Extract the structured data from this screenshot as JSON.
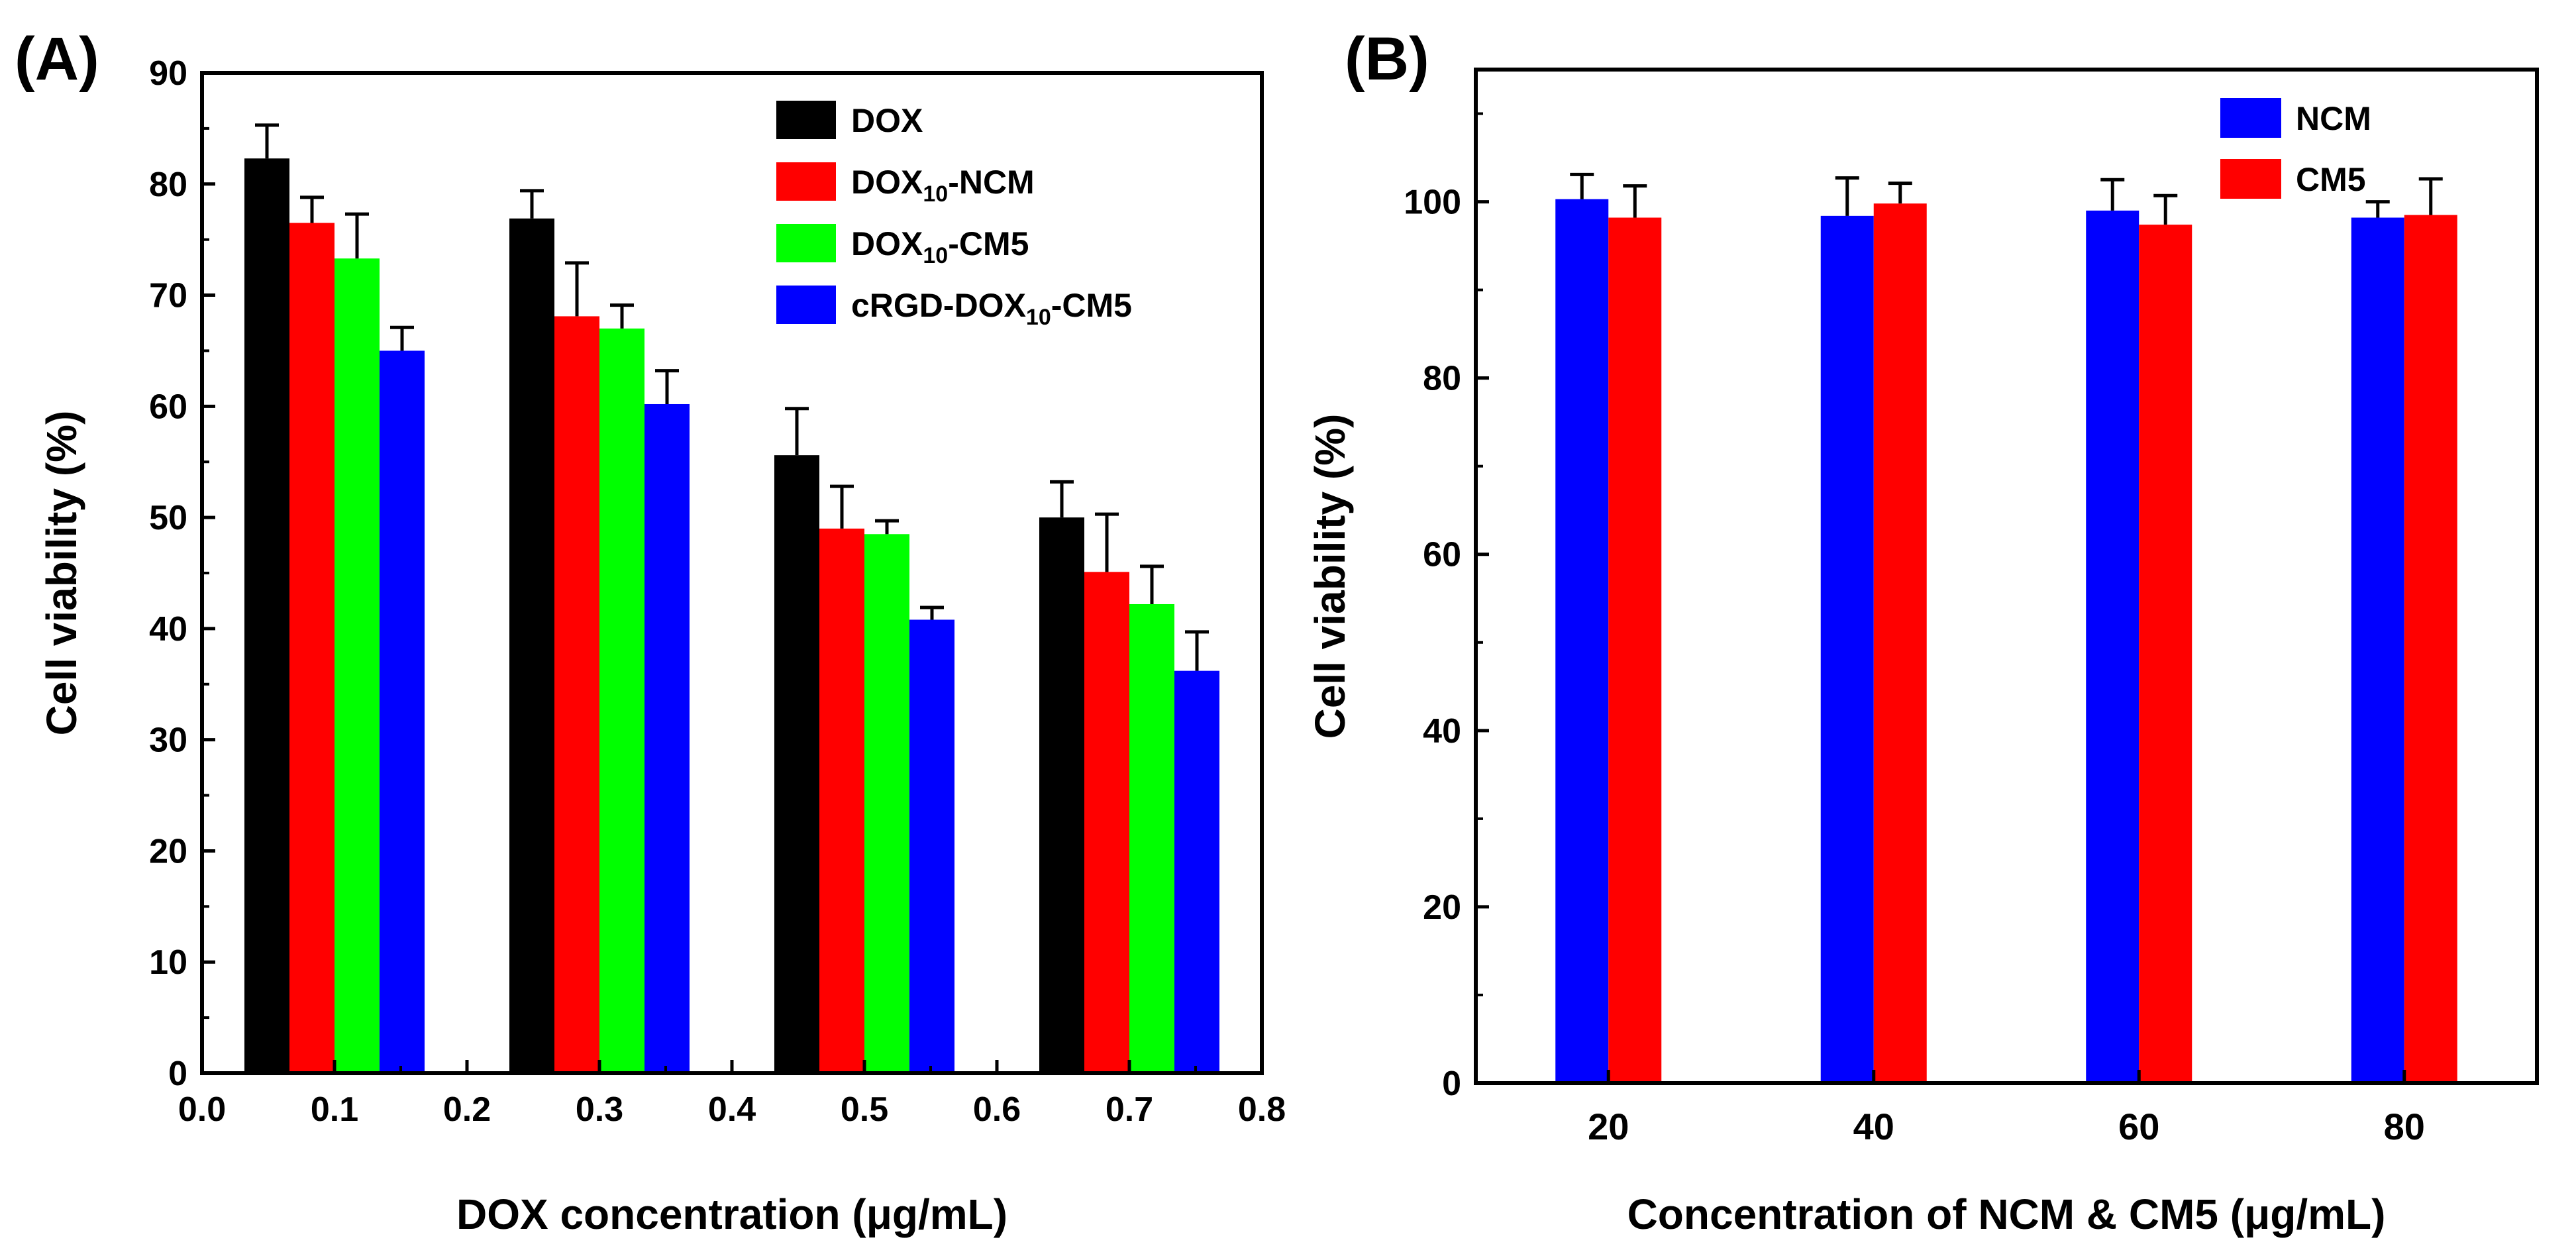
{
  "figure": {
    "panel_a_label": "(A)",
    "panel_b_label": "(B)"
  },
  "chart_data": [
    {
      "type": "bar",
      "panel": "(A)",
      "title": "",
      "xlabel": "DOX concentration (μg/mL)",
      "ylabel": "Cell viability (%)",
      "xlim": [
        0.0,
        0.8
      ],
      "ylim": [
        0,
        90
      ],
      "xticks": [
        "0.0",
        "0.1",
        "0.2",
        "0.3",
        "0.4",
        "0.5",
        "0.6",
        "0.7",
        "0.8"
      ],
      "yticks": [
        "0",
        "10",
        "20",
        "30",
        "40",
        "50",
        "60",
        "70",
        "80",
        "90"
      ],
      "group_centers": [
        0.1,
        0.3,
        0.5,
        0.7
      ],
      "legend_position": "top-right",
      "series": [
        {
          "name": "DOX",
          "label_main": "DOX",
          "label_sub": "",
          "label_tail": "",
          "color": "#000000",
          "values": [
            82.3,
            76.9,
            55.6,
            50.0
          ],
          "errors": [
            3.0,
            2.5,
            4.2,
            3.2
          ]
        },
        {
          "name": "DOX10-NCM",
          "label_main": "DOX",
          "label_sub": "10",
          "label_tail": "-NCM",
          "color": "#ff0000",
          "values": [
            76.5,
            68.1,
            49.0,
            45.1
          ],
          "errors": [
            2.3,
            4.8,
            3.8,
            5.2
          ]
        },
        {
          "name": "DOX10-CM5",
          "label_main": "DOX",
          "label_sub": "10",
          "label_tail": "-CM5",
          "color": "#00ff00",
          "values": [
            73.3,
            67.0,
            48.5,
            42.2
          ],
          "errors": [
            4.0,
            2.1,
            1.2,
            3.4
          ]
        },
        {
          "name": "cRGD-DOX10-CM5",
          "label_main": "cRGD-DOX",
          "label_sub": "10",
          "label_tail": "-CM5",
          "color": "#0000ff",
          "values": [
            65.0,
            60.2,
            40.8,
            36.2
          ],
          "errors": [
            2.1,
            3.0,
            1.1,
            3.5
          ]
        }
      ]
    },
    {
      "type": "bar",
      "panel": "(B)",
      "title": "",
      "xlabel": "Concentration of NCM & CM5 (μg/mL)",
      "ylabel": "Cell viability (%)",
      "ylim": [
        0,
        115
      ],
      "categories": [
        "20",
        "40",
        "60",
        "80"
      ],
      "yticks": [
        "0",
        "20",
        "40",
        "60",
        "80",
        "100"
      ],
      "legend_position": "top-right",
      "series": [
        {
          "name": "NCM",
          "label_main": "NCM",
          "label_sub": "",
          "label_tail": "",
          "color": "#0000ff",
          "values": [
            100.3,
            98.4,
            99.0,
            98.2
          ],
          "errors": [
            2.8,
            4.3,
            3.5,
            1.8
          ]
        },
        {
          "name": "CM5",
          "label_main": "CM5",
          "label_sub": "",
          "label_tail": "",
          "color": "#ff0000",
          "values": [
            98.2,
            99.8,
            97.4,
            98.5
          ],
          "errors": [
            3.6,
            2.3,
            3.3,
            4.1
          ]
        }
      ]
    }
  ]
}
